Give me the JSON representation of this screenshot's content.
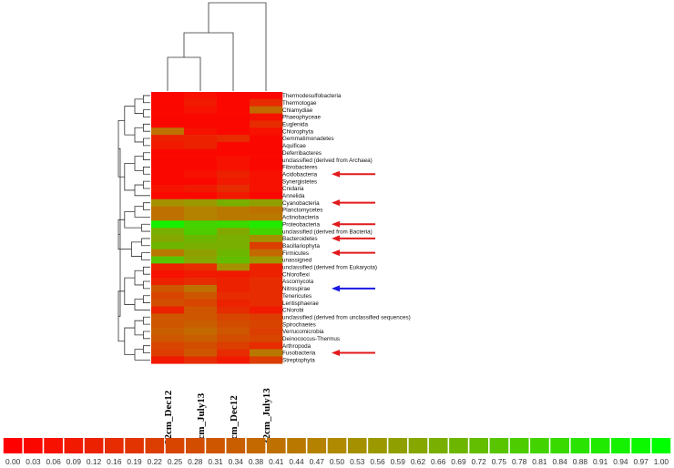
{
  "chart_data": {
    "type": "heatmap",
    "title": "",
    "columns": [
      "32cm_Dec12",
      "2cm_July13",
      "2cm_Dec12",
      "32cm_July13"
    ],
    "rows": [
      "Thermodesulfobacteria",
      "Thermotogae",
      "Chlamydiae",
      "Phaeophyceae",
      "Euglenida",
      "Chlorophyta",
      "Gemmatimonadetes",
      "Aquificae",
      "Deferribacteres",
      "unclassified (derived from Archaea)",
      "Fibrobacteres",
      "Acidobacteria",
      "Synergistetes",
      "Cnidaria",
      "Annelida",
      "Cyanobacteria",
      "Planctomycetes",
      "Actinobacteria",
      "Proteobacteria",
      "unclassified (derived from Bacteria)",
      "Bacteroidetes",
      "Bacillariophyta",
      "Firmicutes",
      "unassigned",
      "unclassified (derived from Eukaryota)",
      "Chloroflexi",
      "Ascomycota",
      "Nitrospirae",
      "Tenericutes",
      "Lentisphaerae",
      "Chlorobi",
      "unclassified (derived from unclassified sequences)",
      "Spirochaetes",
      "Verrucomicrobia",
      "Deinococcus-Thermus",
      "Arthropoda",
      "Fusobacteria",
      "Streptophyta"
    ],
    "values": [
      [
        0.02,
        0.06,
        0.02,
        0.03
      ],
      [
        0.02,
        0.09,
        0.02,
        0.16
      ],
      [
        0.03,
        0.06,
        0.02,
        0.38
      ],
      [
        0.03,
        0.03,
        0.02,
        0.06
      ],
      [
        0.02,
        0.03,
        0.02,
        0.16
      ],
      [
        0.41,
        0.06,
        0.03,
        0.06
      ],
      [
        0.12,
        0.12,
        0.16,
        0.03
      ],
      [
        0.09,
        0.12,
        0.03,
        0.03
      ],
      [
        0.03,
        0.03,
        0.02,
        0.03
      ],
      [
        0.03,
        0.03,
        0.06,
        0.03
      ],
      [
        0.03,
        0.03,
        0.06,
        0.03
      ],
      [
        0.03,
        0.06,
        0.12,
        0.06
      ],
      [
        0.03,
        0.03,
        0.09,
        0.06
      ],
      [
        0.06,
        0.09,
        0.16,
        0.06
      ],
      [
        0.03,
        0.03,
        0.09,
        0.03
      ],
      [
        0.53,
        0.56,
        0.66,
        0.59
      ],
      [
        0.41,
        0.47,
        0.44,
        0.41
      ],
      [
        0.41,
        0.47,
        0.44,
        0.44
      ],
      [
        0.94,
        0.81,
        0.84,
        0.91
      ],
      [
        0.66,
        0.78,
        0.63,
        0.81
      ],
      [
        0.62,
        0.69,
        0.66,
        0.53
      ],
      [
        0.69,
        0.66,
        0.66,
        0.22
      ],
      [
        0.44,
        0.59,
        0.69,
        0.38
      ],
      [
        0.75,
        0.62,
        0.72,
        0.56
      ],
      [
        0.12,
        0.16,
        0.53,
        0.12
      ],
      [
        0.06,
        0.09,
        0.09,
        0.12
      ],
      [
        0.12,
        0.16,
        0.12,
        0.16
      ],
      [
        0.31,
        0.41,
        0.12,
        0.16
      ],
      [
        0.25,
        0.31,
        0.16,
        0.16
      ],
      [
        0.28,
        0.25,
        0.12,
        0.16
      ],
      [
        0.12,
        0.31,
        0.16,
        0.09
      ],
      [
        0.31,
        0.31,
        0.25,
        0.22
      ],
      [
        0.31,
        0.34,
        0.28,
        0.25
      ],
      [
        0.34,
        0.38,
        0.31,
        0.22
      ],
      [
        0.31,
        0.34,
        0.28,
        0.25
      ],
      [
        0.25,
        0.28,
        0.22,
        0.16
      ],
      [
        0.22,
        0.31,
        0.16,
        0.44
      ],
      [
        0.09,
        0.16,
        0.09,
        0.22
      ]
    ],
    "color_scale": {
      "ticks": [
        "0.00",
        "0.03",
        "0.06",
        "0.09",
        "0.12",
        "0.16",
        "0.19",
        "0.22",
        "0.25",
        "0.28",
        "0.31",
        "0.34",
        "0.38",
        "0.41",
        "0.44",
        "0.47",
        "0.50",
        "0.53",
        "0.56",
        "0.59",
        "0.62",
        "0.66",
        "0.69",
        "0.72",
        "0.75",
        "0.78",
        "0.81",
        "0.84",
        "0.88",
        "0.91",
        "0.94",
        "0.97",
        "1.00"
      ],
      "low_color": "#ff0000",
      "mid_color": "#b08a00",
      "high_color": "#00ff00"
    },
    "annotations": [
      {
        "row": "Acidobacteria",
        "arrow_color": "#e31a1c"
      },
      {
        "row": "Cyanobacteria",
        "arrow_color": "#e31a1c"
      },
      {
        "row": "Proteobacteria",
        "arrow_color": "#e31a1c"
      },
      {
        "row": "Bacteroidetes",
        "arrow_color": "#e31a1c"
      },
      {
        "row": "Firmicutes",
        "arrow_color": "#e31a1c"
      },
      {
        "row": "Nitrospirae",
        "arrow_color": "#1a1ae3"
      },
      {
        "row": "Fusobacteria",
        "arrow_color": "#e31a1c"
      }
    ]
  }
}
